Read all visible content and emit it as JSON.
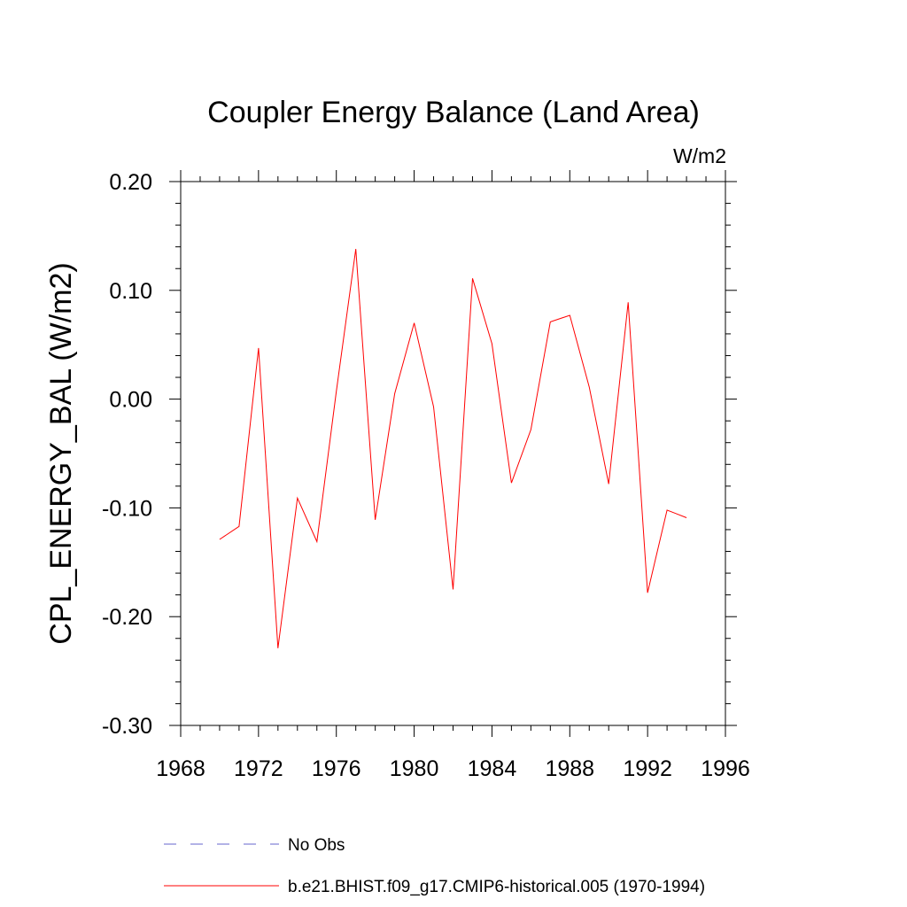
{
  "chart_data": {
    "type": "line",
    "title": "Coupler Energy Balance (Land Area)",
    "units_label": "W/m2",
    "ylabel": "CPL_ENERGY_BAL  (W/m2)",
    "xlabel": "",
    "xlim": [
      1968,
      1996
    ],
    "ylim": [
      -0.3,
      0.2
    ],
    "x_ticks": [
      1968,
      1972,
      1976,
      1980,
      1984,
      1988,
      1992,
      1996
    ],
    "x_tick_labels": [
      "1968",
      "1972",
      "1976",
      "1980",
      "1984",
      "1988",
      "1992",
      "1996"
    ],
    "y_ticks": [
      -0.3,
      -0.2,
      -0.1,
      0.0,
      0.1,
      0.2
    ],
    "y_tick_labels": [
      "-0.30",
      "-0.20",
      "-0.10",
      "0.00",
      "0.10",
      "0.20"
    ],
    "grid": false,
    "legend_position": "bottom",
    "legend": [
      {
        "label": "No Obs",
        "color": "#6666cc",
        "style": "dashed"
      },
      {
        "label": "b.e21.BHIST.f09_g17.CMIP6-historical.005 (1970-1994)",
        "color": "#ff0000",
        "style": "solid"
      }
    ],
    "series": [
      {
        "color": "#ff0000",
        "x": [
          1970,
          1971,
          1972,
          1973,
          1974,
          1975,
          1976,
          1977,
          1978,
          1979,
          1980,
          1981,
          1982,
          1983,
          1984,
          1985,
          1986,
          1987,
          1988,
          1989,
          1990,
          1991,
          1992,
          1993,
          1994
        ],
        "y": [
          -0.129,
          -0.117,
          0.047,
          -0.229,
          -0.091,
          -0.131,
          0.007,
          0.138,
          -0.111,
          0.005,
          0.07,
          -0.007,
          -0.175,
          0.111,
          0.051,
          -0.077,
          -0.028,
          0.071,
          0.077,
          0.011,
          -0.078,
          0.089,
          -0.178,
          -0.102,
          -0.109
        ]
      }
    ]
  }
}
